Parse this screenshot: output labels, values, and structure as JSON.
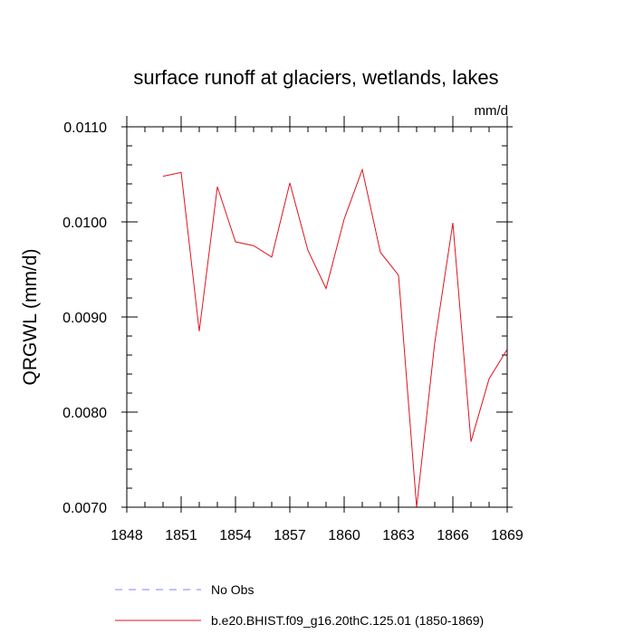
{
  "chart_data": {
    "type": "line",
    "title": "surface runoff at glaciers, wetlands, lakes",
    "units": "mm/d",
    "xlabel": "",
    "ylabel": "QRGWL  (mm/d)",
    "xlim": [
      1848,
      1869
    ],
    "ylim": [
      0.007,
      0.011
    ],
    "x_ticks": [
      1848,
      1851,
      1854,
      1857,
      1860,
      1863,
      1866,
      1869
    ],
    "x_tick_labels": [
      "1848",
      "1851",
      "1854",
      "1857",
      "1860",
      "1863",
      "1866",
      "1869"
    ],
    "y_ticks": [
      0.007,
      0.008,
      0.009,
      0.01,
      0.011
    ],
    "y_tick_labels": [
      "0.0070",
      "0.0080",
      "0.0090",
      "0.0100",
      "0.0110"
    ],
    "grid": false,
    "legend_position": "bottom",
    "series": [
      {
        "name": "b.e20.BHIST.f09_g16.20thC.125.01 (1850-1869)",
        "color": "#e0141e",
        "style": "solid",
        "x": [
          1850,
          1851,
          1852,
          1853,
          1854,
          1855,
          1856,
          1857,
          1858,
          1859,
          1860,
          1861,
          1862,
          1863,
          1864,
          1865,
          1866,
          1867,
          1868,
          1869
        ],
        "y": [
          0.01048,
          0.01052,
          0.00885,
          0.01037,
          0.00979,
          0.00975,
          0.00963,
          0.01041,
          0.0097,
          0.0093,
          0.01003,
          0.01055,
          0.00968,
          0.00944,
          0.007,
          0.00873,
          0.00999,
          0.00769,
          0.00835,
          0.00866
        ]
      }
    ],
    "legend": [
      {
        "label": "No Obs",
        "color": "#8080ff",
        "style": "dashed"
      },
      {
        "label": "b.e20.BHIST.f09_g16.20thC.125.01 (1850-1869)",
        "color": "#e0141e",
        "style": "solid"
      }
    ]
  }
}
